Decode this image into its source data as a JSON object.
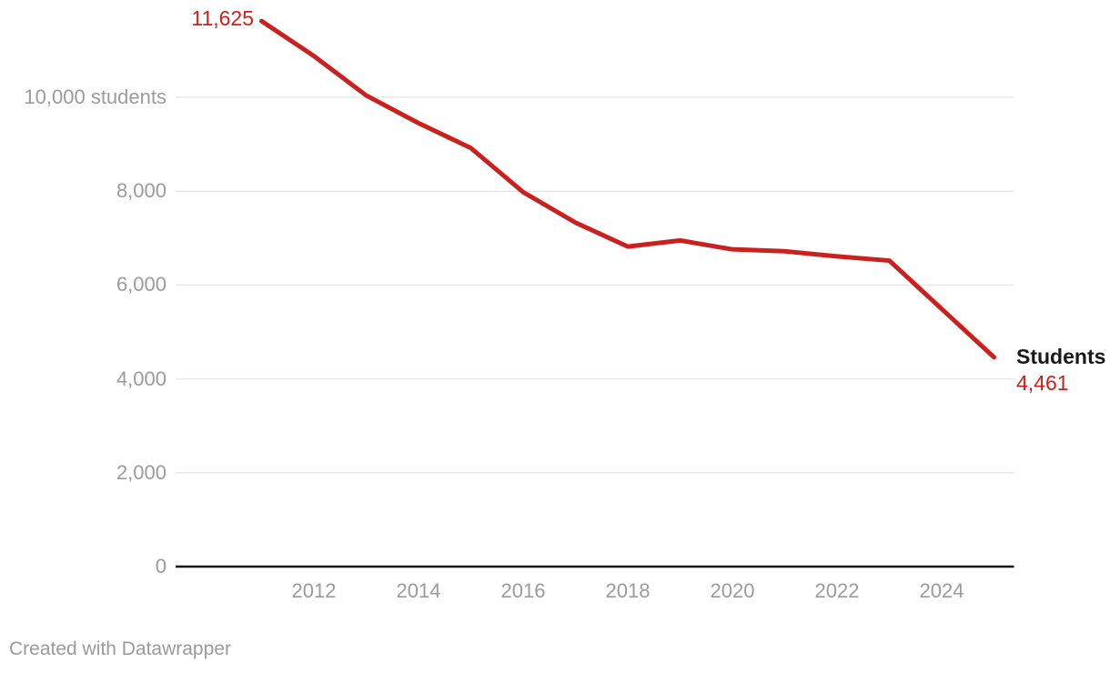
{
  "chart_data": {
    "type": "line",
    "x": [
      2011,
      2012,
      2013,
      2014,
      2015,
      2016,
      2017,
      2018,
      2019,
      2020,
      2021,
      2022,
      2023,
      2024,
      2025
    ],
    "series": [
      {
        "name": "Students",
        "values": [
          11625,
          10880,
          10040,
          9450,
          8920,
          7980,
          7330,
          6820,
          6950,
          6760,
          6720,
          6610,
          6520,
          5490,
          4461
        ]
      }
    ],
    "start_label": "11,625",
    "end_label": "4,461",
    "y_ticks": [
      {
        "value": 0,
        "label": "0"
      },
      {
        "value": 2000,
        "label": "2,000"
      },
      {
        "value": 4000,
        "label": "4,000"
      },
      {
        "value": 6000,
        "label": "6,000"
      },
      {
        "value": 8000,
        "label": "8,000"
      },
      {
        "value": 10000,
        "label": "10,000 students"
      }
    ],
    "x_ticks": [
      {
        "value": 2012,
        "label": "2012"
      },
      {
        "value": 2014,
        "label": "2014"
      },
      {
        "value": 2016,
        "label": "2016"
      },
      {
        "value": 2018,
        "label": "2018"
      },
      {
        "value": 2020,
        "label": "2020"
      },
      {
        "value": 2022,
        "label": "2022"
      },
      {
        "value": 2024,
        "label": "2024"
      },
      {
        "value": 2011,
        "label": ""
      },
      {
        "value": 2025,
        "label": ""
      }
    ],
    "xlim": [
      2011,
      2025
    ],
    "ylim": [
      0,
      12075
    ],
    "xlabel": "",
    "ylabel": "",
    "grid": "horizontal",
    "legend_position": "end-of-line"
  },
  "footer": {
    "credit": "Created with Datawrapper"
  },
  "colors": {
    "line": "#cb211e",
    "value_label": "#cb211e",
    "series_label": "#1a1a1a",
    "tick_text": "#9b9b9b",
    "gridline": "#e9e9e9",
    "axis_line": "#141414",
    "background": "#ffffff"
  }
}
